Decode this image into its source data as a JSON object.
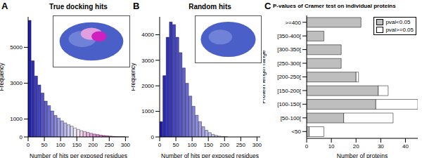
{
  "chart_data": [
    {
      "type": "histogram",
      "annotations": [
        "A"
      ],
      "title": "True docking hits",
      "x_label": "Number of hits per exposed residues",
      "y_label": "Frequency",
      "bins": [
        0,
        10,
        20,
        30,
        40,
        50,
        60,
        70,
        80,
        90,
        100,
        110,
        120,
        130,
        140,
        150,
        160,
        170,
        180,
        190,
        200,
        210,
        220,
        230,
        240,
        250,
        260,
        270,
        280,
        290,
        300
      ],
      "values": [
        6500,
        4250,
        3400,
        2900,
        2450,
        2000,
        1750,
        1450,
        1200,
        1050,
        900,
        780,
        680,
        600,
        500,
        420,
        350,
        300,
        250,
        200,
        160,
        130,
        100,
        80,
        60,
        45,
        30,
        20,
        15,
        10
      ],
      "colors": [
        "#1f1fb4",
        "#2b2bba",
        "#3838c0",
        "#4545c6",
        "#5252cc",
        "#6060d1",
        "#6e6ed6",
        "#7c7cdb",
        "#8b8be0",
        "#9a9ae5",
        "#aaaaea",
        "#babaef",
        "#cacaf3",
        "#dadaf7",
        "#ebebfb",
        "#f7e6f5",
        "#f5d6f0",
        "#f2c6eb",
        "#efb5e6",
        "#eca4e1",
        "#e993dc",
        "#e682d7",
        "#e371d2",
        "#e060cd",
        "#dd4fc8",
        "#da3fc3",
        "#d830c0",
        "#d522bc",
        "#d216b9",
        "#cf0cb6"
      ],
      "xlim": [
        0,
        310
      ],
      "xticks": [
        0,
        50,
        100,
        150,
        200,
        250,
        300
      ],
      "ylim": [
        0,
        6700
      ],
      "yticks": [
        0,
        1000,
        3000,
        5000
      ]
    },
    {
      "type": "histogram",
      "annotations": [
        "B"
      ],
      "title": "Random hits",
      "x_label": "Number of hits per exposed residues",
      "y_label": "Frequency",
      "bins": [
        0,
        10,
        20,
        30,
        40,
        50,
        60,
        70,
        80,
        90,
        100,
        110,
        120,
        130,
        140,
        150,
        160,
        170,
        180,
        190,
        200,
        210
      ],
      "values": [
        600,
        2400,
        3900,
        4500,
        4400,
        3900,
        3300,
        2700,
        2100,
        1600,
        1200,
        850,
        600,
        400,
        260,
        170,
        100,
        60,
        30,
        15,
        8
      ],
      "colors": [
        "#1f1fb4",
        "#2727b8",
        "#3030bc",
        "#3939c0",
        "#4343c4",
        "#4d4dc8",
        "#5757cc",
        "#6262d0",
        "#6d6dd4",
        "#7878d8",
        "#8484dc",
        "#9090e0",
        "#9c9ce4",
        "#a8a8e8",
        "#b4b4eb",
        "#c0c0ee",
        "#cacaf1",
        "#d2d2f3",
        "#d8d8f5",
        "#dedef7",
        "#e4e4f9"
      ],
      "xlim": [
        0,
        310
      ],
      "xticks": [
        0,
        50,
        100,
        150,
        200,
        250,
        300
      ],
      "ylim": [
        0,
        4700
      ],
      "yticks": [
        0,
        1000,
        2000,
        3000,
        4000
      ]
    },
    {
      "type": "bar",
      "orientation": "horizontal",
      "stacked": true,
      "annotations": [
        "C"
      ],
      "title": "P-values of Cramer test on individual proteins",
      "x_label": "Number of proteins",
      "y_label": "Protein length range",
      "categories": [
        ">=400",
        "[350-400[",
        "[300-350[",
        "[250-300[",
        "[200-250[",
        "[150-200[",
        "[100-150[",
        "[50-100[",
        "<50"
      ],
      "series": [
        {
          "name": "pval<0.05",
          "color": "#bebebe",
          "values": [
            22,
            7,
            14,
            14,
            20,
            29,
            28,
            15,
            1
          ]
        },
        {
          "name": "pval>=0.05",
          "color": "#ffffff",
          "values": [
            0,
            0,
            0,
            0,
            1,
            4,
            17,
            20,
            6
          ]
        }
      ],
      "xlim": [
        0,
        45
      ],
      "xticks": [
        0,
        10,
        20,
        30,
        40
      ],
      "legend": "upper right"
    }
  ]
}
